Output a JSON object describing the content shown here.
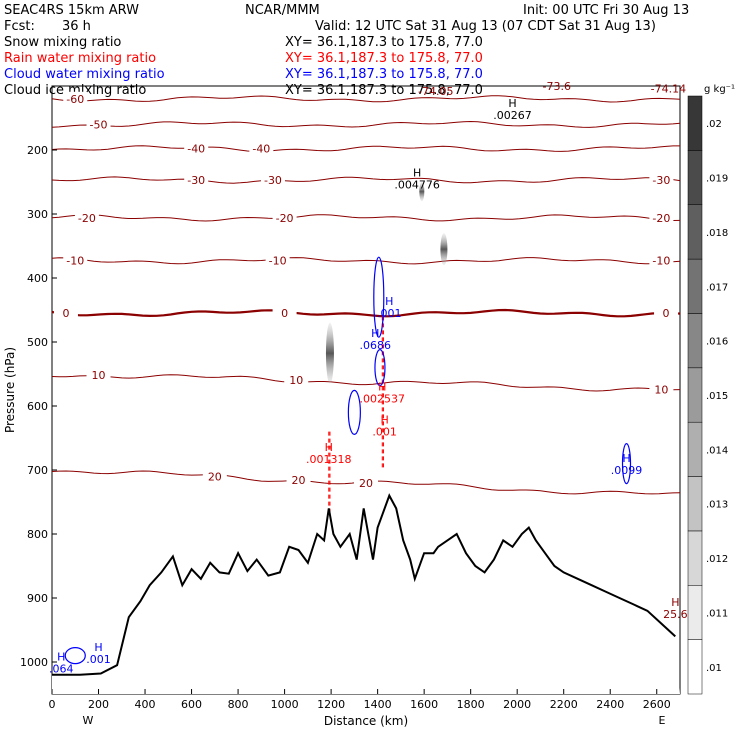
{
  "header": {
    "model": "SEAC4RS 15km ARW",
    "org": "NCAR/MMM",
    "init": "Init: 00 UTC Fri 30 Aug 13",
    "fcst_label": "Fcst:",
    "fcst_value": "36 h",
    "valid": "Valid: 12 UTC Sat 31 Aug 13 (07 CDT Sat 31 Aug 13)",
    "fields": [
      {
        "name": "Snow mixing ratio",
        "xy": "XY=  36.1,187.3 to 175.8, 77.0",
        "color": "#000000"
      },
      {
        "name": "Rain water mixing ratio",
        "xy": "XY=  36.1,187.3 to 175.8, 77.0",
        "color": "#ff0000"
      },
      {
        "name": "Cloud water mixing ratio",
        "xy": "XY=  36.1,187.3 to 175.8, 77.0",
        "color": "#0000ff"
      },
      {
        "name": "Cloud ice mixing ratio",
        "xy": "XY=  36.1,187.3 to 175.8, 77.0",
        "color": "#000000"
      }
    ]
  },
  "chart_data": {
    "type": "cross-section",
    "xlabel": "Distance (km)",
    "ylabel": "Pressure (hPa)",
    "xlim": [
      0,
      2700
    ],
    "ylim": [
      1050,
      100
    ],
    "x_ticks": [
      0,
      200,
      400,
      600,
      800,
      1000,
      1200,
      1400,
      1600,
      1800,
      2000,
      2200,
      2400,
      2600
    ],
    "y_ticks": [
      200,
      300,
      400,
      500,
      600,
      700,
      800,
      900,
      1000
    ],
    "end_labels": {
      "left": "W",
      "right": "E"
    },
    "temperature_contours": [
      {
        "value": -60,
        "pressure": 120,
        "labels": [
          {
            "x": 100,
            "text": "-60"
          }
        ]
      },
      {
        "value": -50,
        "pressure": 160,
        "labels": [
          {
            "x": 200,
            "text": "-50"
          }
        ]
      },
      {
        "value": -40,
        "pressure": 198,
        "labels": [
          {
            "x": 620,
            "text": "-40"
          },
          {
            "x": 900,
            "text": "-40"
          }
        ]
      },
      {
        "value": -30,
        "pressure": 247,
        "labels": [
          {
            "x": 620,
            "text": "-30"
          },
          {
            "x": 950,
            "text": "-30"
          },
          {
            "x": 2620,
            "text": "-30"
          }
        ]
      },
      {
        "value": -20,
        "pressure": 306,
        "labels": [
          {
            "x": 150,
            "text": "-20"
          },
          {
            "x": 1000,
            "text": "-20"
          },
          {
            "x": 2620,
            "text": "-20"
          }
        ]
      },
      {
        "value": -10,
        "pressure": 373,
        "labels": [
          {
            "x": 100,
            "text": "-10"
          },
          {
            "x": 970,
            "text": "-10"
          },
          {
            "x": 2620,
            "text": "-10"
          }
        ]
      },
      {
        "value": 0,
        "pressure": 455,
        "labels": [
          {
            "x": 60,
            "text": "0"
          },
          {
            "x": 1000,
            "text": "0"
          },
          {
            "x": 2640,
            "text": "0"
          }
        ]
      },
      {
        "value": 10,
        "pressure": 550,
        "labels": [
          {
            "x": 200,
            "text": "10"
          },
          {
            "x": 1050,
            "text": "10"
          },
          {
            "x": 2620,
            "text": "10"
          }
        ]
      },
      {
        "value": 20,
        "pressure": 700,
        "labels": [
          {
            "x": 700,
            "text": "20"
          },
          {
            "x": 1060,
            "text": "20"
          },
          {
            "x": 1350,
            "text": "20"
          }
        ]
      }
    ],
    "extrema": [
      {
        "kind": "H",
        "value": ".00267",
        "x": 1980,
        "p": 145,
        "color": "#000000"
      },
      {
        "kind": "H",
        "value": ".004776",
        "x": 1570,
        "p": 254,
        "color": "#000000"
      },
      {
        "kind": "H",
        "value": ".001",
        "x": 1450,
        "p": 455,
        "color": "#0000ff"
      },
      {
        "kind": "H",
        "value": ".0686",
        "x": 1390,
        "p": 505,
        "color": "#0000ff"
      },
      {
        "kind": "H",
        "value": ".002537",
        "x": 1420,
        "p": 588,
        "color": "#ff0000"
      },
      {
        "kind": "H",
        "value": ".001",
        "x": 1430,
        "p": 640,
        "color": "#ff0000"
      },
      {
        "kind": "H",
        "value": ".001318",
        "x": 1190,
        "p": 683,
        "color": "#ff0000"
      },
      {
        "kind": "H",
        "value": ".0099",
        "x": 2470,
        "p": 700,
        "color": "#0000ff"
      },
      {
        "kind": "H",
        "value": ".001",
        "x": 200,
        "p": 995,
        "color": "#0000ff"
      },
      {
        "kind": "H",
        "value": ".064",
        "x": 40,
        "p": 1010,
        "color": "#0000ff"
      },
      {
        "kind": "H",
        "value": "25.6",
        "x": 2680,
        "p": 925,
        "color": "#8b0000"
      },
      {
        "kind": "",
        "value": "-74.05",
        "x": 1650,
        "p": 108,
        "color": "#8b0000"
      },
      {
        "kind": "",
        "value": "-73.6",
        "x": 2170,
        "p": 100,
        "color": "#8b0000"
      },
      {
        "kind": "",
        "value": "-74.14",
        "x": 2650,
        "p": 104,
        "color": "#8b0000"
      }
    ],
    "terrain": {
      "x": [
        0,
        120,
        210,
        280,
        330,
        380,
        420,
        470,
        520,
        560,
        600,
        640,
        680,
        720,
        760,
        800,
        840,
        880,
        930,
        980,
        1020,
        1060,
        1100,
        1140,
        1170,
        1190,
        1210,
        1240,
        1280,
        1310,
        1340,
        1360,
        1380,
        1400,
        1420,
        1450,
        1480,
        1510,
        1540,
        1560,
        1600,
        1640,
        1660,
        1700,
        1740,
        1780,
        1820,
        1860,
        1900,
        1940,
        1980,
        2020,
        2050,
        2080,
        2120,
        2160,
        2200,
        2260,
        2320,
        2380,
        2440,
        2500,
        2560,
        2620,
        2680
      ],
      "p": [
        1020,
        1020,
        1018,
        1005,
        930,
        905,
        880,
        860,
        835,
        880,
        855,
        870,
        845,
        860,
        862,
        830,
        858,
        840,
        865,
        860,
        820,
        825,
        845,
        800,
        810,
        760,
        800,
        820,
        800,
        840,
        760,
        800,
        840,
        790,
        770,
        740,
        760,
        810,
        840,
        870,
        830,
        830,
        820,
        810,
        800,
        830,
        850,
        860,
        840,
        810,
        820,
        800,
        790,
        810,
        830,
        850,
        860,
        870,
        880,
        890,
        900,
        910,
        920,
        940,
        960
      ]
    },
    "colorbar": {
      "unit": "g kg⁻¹",
      "labels": [
        ".01",
        ".011",
        ".012",
        ".013",
        ".014",
        ".015",
        ".016",
        ".017",
        ".018",
        ".019",
        ".02"
      ]
    }
  }
}
